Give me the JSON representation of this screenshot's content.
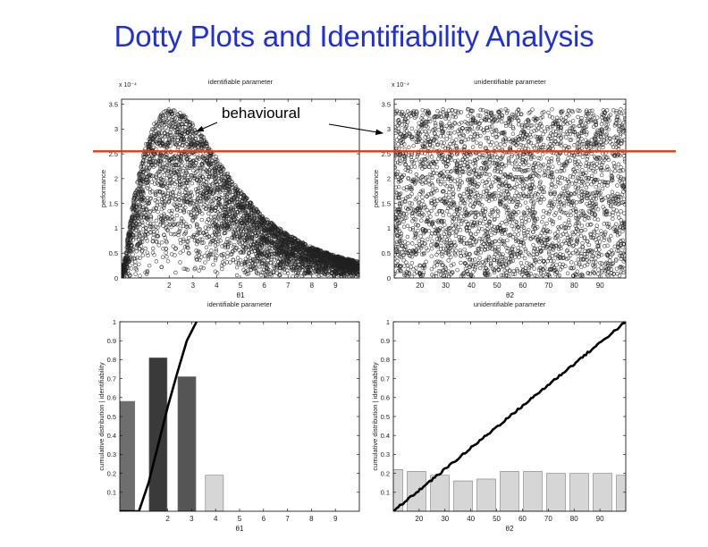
{
  "slide": {
    "title": "Dotty Plots and Identifiability Analysis"
  },
  "colors": {
    "title": "#1f2fd9",
    "threshold_line": "#e03a10",
    "points": "#222222",
    "cdf_line": "#000000"
  },
  "chart_data": [
    {
      "id": "dotty-theta1",
      "type": "scatter",
      "title": "identifiable parameter",
      "xlabel": "θ1",
      "ylabel": "performance",
      "scale_note": "x 10⁻⁴",
      "xlim": [
        0,
        10
      ],
      "ylim": [
        0,
        3.6
      ],
      "xticks": [
        2,
        3,
        4,
        5,
        6,
        7,
        8,
        9
      ],
      "yticks": [
        0,
        0.5,
        1,
        1.5,
        2,
        2.5,
        3,
        3.5
      ],
      "ytick_labels": [
        "0",
        "0.5",
        "1",
        "1.5",
        "2",
        "2.5",
        "3",
        "3.5"
      ],
      "envelope": {
        "x": [
          0,
          0.5,
          1,
          1.5,
          2,
          2.5,
          3,
          3.5,
          4,
          5,
          6,
          7,
          8,
          9,
          10
        ],
        "y": [
          0.0,
          1.6,
          2.7,
          3.25,
          3.42,
          3.35,
          3.1,
          2.8,
          2.42,
          1.75,
          1.22,
          0.88,
          0.62,
          0.45,
          0.33
        ]
      },
      "n_points": 4000,
      "annotation": "behavioural"
    },
    {
      "id": "dotty-theta2",
      "type": "scatter",
      "title": "unidentifiable parameter",
      "xlabel": "θ2",
      "ylabel": "performance",
      "scale_note": "x 10⁻⁴",
      "xlim": [
        10,
        100
      ],
      "ylim": [
        0,
        3.6
      ],
      "xticks": [
        20,
        30,
        40,
        50,
        60,
        70,
        80,
        90
      ],
      "yticks": [
        0,
        0.5,
        1,
        1.5,
        2,
        2.5,
        3,
        3.5
      ],
      "ytick_labels": [
        "0",
        "0.5",
        "1",
        "1.5",
        "2",
        "2.5",
        "3",
        "3.5"
      ],
      "envelope_max": 3.4,
      "n_points": 3200
    },
    {
      "id": "ident-theta1",
      "type": "bar",
      "title": "identifiable parameter",
      "xlabel": "θ1",
      "ylabel": "cumulative distribution | identifiability",
      "xlim": [
        0,
        10
      ],
      "ylim": [
        0,
        1
      ],
      "xticks": [
        2,
        3,
        4,
        5,
        6,
        7,
        8,
        9
      ],
      "yticks": [
        0.1,
        0.2,
        0.3,
        0.4,
        0.5,
        0.6,
        0.7,
        0.8,
        0.9,
        1
      ],
      "ytick_labels": [
        "0.1",
        "0.2",
        "0.3",
        "0.4",
        "0.5",
        "0.6",
        "0.7",
        "0.8",
        "0.9",
        "1"
      ],
      "bars": [
        {
          "center": 0.25,
          "value": 0.58,
          "color": "#6e6e6e"
        },
        {
          "center": 1.6,
          "value": 0.81,
          "color": "#3a3a3a"
        },
        {
          "center": 2.8,
          "value": 0.71,
          "color": "#555555"
        },
        {
          "center": 3.95,
          "value": 0.19,
          "color": "#d6d6d6"
        }
      ],
      "cdf": {
        "x": [
          0,
          0.8,
          1.2,
          1.6,
          2.0,
          2.4,
          2.8,
          3.2
        ],
        "y": [
          0,
          0.0,
          0.15,
          0.35,
          0.55,
          0.73,
          0.9,
          1.0
        ]
      }
    },
    {
      "id": "ident-theta2",
      "type": "bar",
      "title": "unidentifiable parameter",
      "xlabel": "θ2",
      "ylabel": "cumulative distribution | identifiability",
      "xlim": [
        10,
        100
      ],
      "ylim": [
        0,
        1
      ],
      "xticks": [
        20,
        30,
        40,
        50,
        60,
        70,
        80,
        90
      ],
      "yticks": [
        0.1,
        0.2,
        0.3,
        0.4,
        0.5,
        0.6,
        0.7,
        0.8,
        0.9,
        1
      ],
      "ytick_labels": [
        "0.1",
        "0.2",
        "0.3",
        "0.4",
        "0.5",
        "0.6",
        "0.7",
        "0.8",
        "0.9",
        "1"
      ],
      "bars": [
        {
          "center": 10,
          "value": 0.22,
          "color": "#d6d6d6"
        },
        {
          "center": 19,
          "value": 0.21,
          "color": "#d6d6d6"
        },
        {
          "center": 28,
          "value": 0.19,
          "color": "#d6d6d6"
        },
        {
          "center": 37,
          "value": 0.16,
          "color": "#d6d6d6"
        },
        {
          "center": 46,
          "value": 0.17,
          "color": "#d6d6d6"
        },
        {
          "center": 55,
          "value": 0.21,
          "color": "#d6d6d6"
        },
        {
          "center": 64,
          "value": 0.21,
          "color": "#d6d6d6"
        },
        {
          "center": 73,
          "value": 0.2,
          "color": "#d6d6d6"
        },
        {
          "center": 82,
          "value": 0.2,
          "color": "#d6d6d6"
        },
        {
          "center": 91,
          "value": 0.2,
          "color": "#d6d6d6"
        },
        {
          "center": 100,
          "value": 0.19,
          "color": "#d6d6d6"
        }
      ],
      "cdf": {
        "x": [
          10,
          100
        ],
        "y": [
          0,
          1
        ]
      }
    }
  ],
  "threshold": {
    "value": 2.55
  }
}
